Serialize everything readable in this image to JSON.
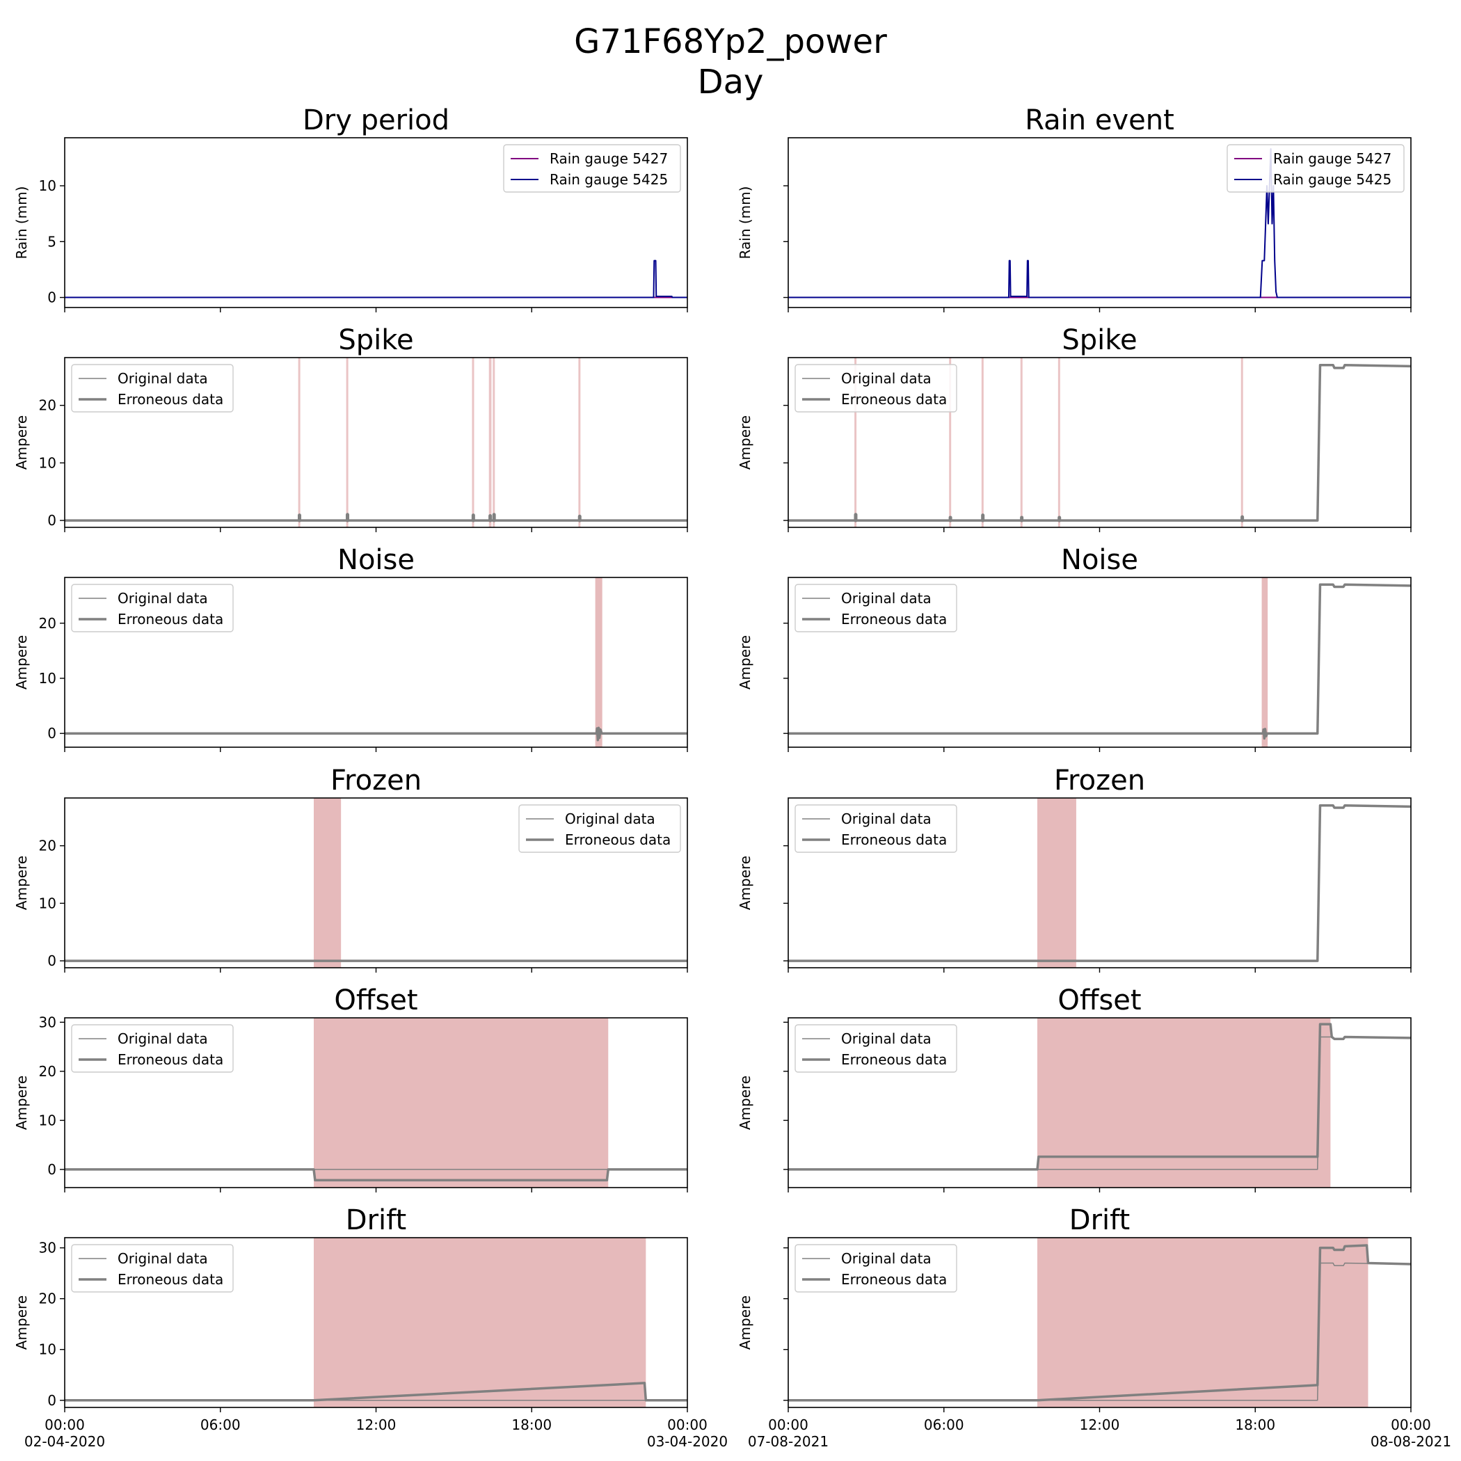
{
  "chart_data": {
    "type": "line",
    "title": "G71F68Yp2_power",
    "subtitle": "Day",
    "columns": [
      {
        "title": "Dry period",
        "x_ticks": [
          "00:00",
          "06:00",
          "12:00",
          "18:00",
          "00:00"
        ],
        "x_dates": [
          "02-04-2020",
          "03-04-2020"
        ]
      },
      {
        "title": "Rain event",
        "x_ticks": [
          "00:00",
          "06:00",
          "12:00",
          "18:00",
          "00:00"
        ],
        "x_dates": [
          "07-08-2021",
          "08-08-2021"
        ]
      }
    ],
    "xlim_hours": [
      0,
      24
    ],
    "colors": {
      "gauge_5427": "#800080",
      "gauge_5425": "#00008b",
      "data": "#808080",
      "highlight": "#e6babb"
    },
    "rows": [
      {
        "title": "Rain event",
        "title_dry": "Dry period",
        "ylabel": "Rain (mm)",
        "ylim": [
          -0.9,
          14.3
        ],
        "yticks": [
          "0",
          "5",
          "10"
        ],
        "ytick_values": [
          0,
          5,
          10
        ],
        "legend": [
          "Rain gauge 5427",
          "Rain gauge 5425"
        ],
        "legend_position": "top-right"
      },
      {
        "title": "Spike",
        "ylabel": "Ampere",
        "ylim": [
          -1.2,
          28.3
        ],
        "yticks": [
          "0",
          "10",
          "20"
        ],
        "ytick_values": [
          0,
          10,
          20
        ],
        "legend": [
          "Original data",
          "Erroneous data"
        ],
        "legend_position": "top-left"
      },
      {
        "title": "Noise",
        "ylabel": "Ampere",
        "ylim": [
          -2.5,
          28.3
        ],
        "yticks": [
          "0",
          "10",
          "20"
        ],
        "ytick_values": [
          0,
          10,
          20
        ],
        "legend": [
          "Original data",
          "Erroneous data"
        ],
        "legend_position": "top-left"
      },
      {
        "title": "Frozen",
        "ylabel": "Ampere",
        "ylim": [
          -1.2,
          28.3
        ],
        "yticks": [
          "0",
          "10",
          "20"
        ],
        "ytick_values": [
          0,
          10,
          20
        ],
        "legend": [
          "Original data",
          "Erroneous data"
        ],
        "legend_position_dry": "top-right",
        "legend_position": "top-left"
      },
      {
        "title": "Offset",
        "ylabel": "Ampere",
        "ylim": [
          -3.7,
          30.9
        ],
        "yticks": [
          "0",
          "10",
          "20",
          "30"
        ],
        "ytick_values": [
          0,
          10,
          20,
          30
        ],
        "legend": [
          "Original data",
          "Erroneous data"
        ],
        "legend_position": "top-left"
      },
      {
        "title": "Drift",
        "ylabel": "Ampere",
        "ylim": [
          -1.4,
          32.0
        ],
        "yticks": [
          "0",
          "10",
          "20",
          "30"
        ],
        "ytick_values": [
          0,
          10,
          20,
          30
        ],
        "legend": [
          "Original data",
          "Erroneous data"
        ],
        "legend_position": "top-left"
      }
    ],
    "panels": {
      "dry": {
        "rain": {
          "gauge_5427": [
            [
              0,
              0
            ],
            [
              22.7,
              0
            ],
            [
              24,
              0
            ]
          ],
          "gauge_5425": [
            [
              0,
              0
            ],
            [
              22.7,
              0
            ],
            [
              22.72,
              3.3
            ],
            [
              22.78,
              3.3
            ],
            [
              22.8,
              0.1
            ],
            [
              23.4,
              0.1
            ],
            [
              23.42,
              0
            ],
            [
              24,
              0
            ]
          ]
        },
        "spike": {
          "original": [
            [
              0,
              0
            ],
            [
              24,
              0
            ]
          ],
          "erroneous": [
            [
              0,
              0
            ],
            [
              24,
              0
            ]
          ],
          "spikes": [
            [
              9.05,
              0.9
            ],
            [
              10.9,
              1.0
            ],
            [
              15.75,
              0.9
            ],
            [
              16.4,
              0.8
            ],
            [
              16.55,
              1.0
            ],
            [
              19.85,
              0.7
            ]
          ],
          "regions": [
            [
              9.0,
              9.08
            ],
            [
              10.85,
              10.93
            ],
            [
              15.7,
              15.78
            ],
            [
              16.35,
              16.45
            ],
            [
              16.5,
              16.58
            ],
            [
              19.8,
              19.88
            ]
          ]
        },
        "noise": {
          "original": [
            [
              0,
              0
            ],
            [
              24,
              0
            ]
          ],
          "erroneous": [
            [
              0,
              0
            ],
            [
              20.5,
              0
            ],
            [
              20.52,
              0.9
            ],
            [
              20.55,
              -1.2
            ],
            [
              20.58,
              1.0
            ],
            [
              20.61,
              -0.8
            ],
            [
              20.65,
              0.7
            ],
            [
              20.7,
              0
            ],
            [
              24,
              0
            ]
          ],
          "regions": [
            [
              20.45,
              20.72
            ]
          ]
        },
        "frozen": {
          "original": [
            [
              0,
              0
            ],
            [
              24,
              0
            ]
          ],
          "erroneous": [
            [
              0,
              0
            ],
            [
              24,
              0
            ]
          ],
          "regions": [
            [
              9.6,
              10.65
            ]
          ]
        },
        "offset": {
          "original": [
            [
              0,
              0
            ],
            [
              24,
              0
            ]
          ],
          "erroneous": [
            [
              0,
              0
            ],
            [
              9.6,
              0
            ],
            [
              9.65,
              -2.2
            ],
            [
              20.9,
              -2.2
            ],
            [
              20.95,
              0
            ],
            [
              24,
              0
            ]
          ],
          "regions": [
            [
              9.6,
              20.95
            ]
          ]
        },
        "drift": {
          "original": [
            [
              0,
              0
            ],
            [
              24,
              0
            ]
          ],
          "erroneous": [
            [
              0,
              0
            ],
            [
              9.6,
              0
            ],
            [
              22.35,
              3.4
            ],
            [
              22.4,
              0
            ],
            [
              24,
              0
            ]
          ],
          "regions": [
            [
              9.6,
              22.4
            ]
          ]
        }
      },
      "rain": {
        "rain": {
          "gauge_5427": [
            [
              0,
              0
            ],
            [
              24,
              0
            ]
          ],
          "gauge_5425": [
            [
              0,
              0
            ],
            [
              8.5,
              0
            ],
            [
              8.52,
              3.3
            ],
            [
              8.55,
              3.3
            ],
            [
              8.57,
              0.1
            ],
            [
              9.2,
              0.1
            ],
            [
              9.22,
              3.3
            ],
            [
              9.25,
              3.3
            ],
            [
              9.27,
              0
            ],
            [
              18.2,
              0
            ],
            [
              18.27,
              3.3
            ],
            [
              18.35,
              3.3
            ],
            [
              18.4,
              6.6
            ],
            [
              18.45,
              10.0
            ],
            [
              18.5,
              6.6
            ],
            [
              18.55,
              10.0
            ],
            [
              18.6,
              13.3
            ],
            [
              18.65,
              6.6
            ],
            [
              18.7,
              10.0
            ],
            [
              18.75,
              3.3
            ],
            [
              18.8,
              0.5
            ],
            [
              18.85,
              0
            ],
            [
              24,
              0
            ]
          ]
        },
        "spike": {
          "original": [
            [
              0,
              0
            ],
            [
              20.4,
              0
            ],
            [
              20.5,
              27.0
            ],
            [
              21.0,
              27.0
            ],
            [
              21.05,
              26.5
            ],
            [
              21.4,
              26.5
            ],
            [
              21.45,
              27.0
            ],
            [
              24,
              26.8
            ]
          ],
          "erroneous": [
            [
              0,
              0
            ],
            [
              20.4,
              0
            ],
            [
              20.5,
              27.0
            ],
            [
              21.0,
              27.0
            ],
            [
              21.05,
              26.5
            ],
            [
              21.4,
              26.5
            ],
            [
              21.45,
              27.0
            ],
            [
              24,
              26.8
            ]
          ],
          "spikes": [
            [
              2.6,
              1.0
            ],
            [
              6.25,
              0.5
            ],
            [
              7.5,
              0.9
            ],
            [
              9.0,
              0.5
            ],
            [
              10.45,
              0.5
            ],
            [
              17.5,
              0.6
            ]
          ],
          "regions": [
            [
              2.55,
              2.63
            ],
            [
              6.2,
              6.28
            ],
            [
              7.45,
              7.53
            ],
            [
              8.95,
              9.03
            ],
            [
              10.4,
              10.48
            ],
            [
              17.45,
              17.53
            ]
          ]
        },
        "noise": {
          "original": [
            [
              0,
              0
            ],
            [
              20.4,
              0
            ],
            [
              20.5,
              27.0
            ],
            [
              21.0,
              27.0
            ],
            [
              21.05,
              26.6
            ],
            [
              21.4,
              26.6
            ],
            [
              21.45,
              27.0
            ],
            [
              24,
              26.8
            ]
          ],
          "erroneous": [
            [
              0,
              0
            ],
            [
              18.3,
              0
            ],
            [
              18.32,
              0.7
            ],
            [
              18.35,
              -0.9
            ],
            [
              18.38,
              0.8
            ],
            [
              18.42,
              -0.5
            ],
            [
              18.46,
              0
            ],
            [
              20.4,
              0
            ],
            [
              20.5,
              27.0
            ],
            [
              21.0,
              27.0
            ],
            [
              21.05,
              26.6
            ],
            [
              21.4,
              26.6
            ],
            [
              21.45,
              27.0
            ],
            [
              24,
              26.8
            ]
          ],
          "regions": [
            [
              18.25,
              18.48
            ]
          ]
        },
        "frozen": {
          "original": [
            [
              0,
              0
            ],
            [
              20.4,
              0
            ],
            [
              20.5,
              27.0
            ],
            [
              21.0,
              27.0
            ],
            [
              21.05,
              26.6
            ],
            [
              21.4,
              26.6
            ],
            [
              21.45,
              27.0
            ],
            [
              24,
              26.8
            ]
          ],
          "erroneous": [
            [
              0,
              0
            ],
            [
              20.4,
              0
            ],
            [
              20.5,
              27.0
            ],
            [
              21.0,
              27.0
            ],
            [
              21.05,
              26.6
            ],
            [
              21.4,
              26.6
            ],
            [
              21.45,
              27.0
            ],
            [
              24,
              26.8
            ]
          ],
          "regions": [
            [
              9.6,
              11.1
            ]
          ]
        },
        "offset": {
          "original": [
            [
              0,
              0
            ],
            [
              20.4,
              0
            ],
            [
              20.5,
              27.0
            ],
            [
              21.0,
              27.0
            ],
            [
              21.05,
              26.6
            ],
            [
              21.4,
              26.6
            ],
            [
              21.45,
              27.0
            ],
            [
              24,
              26.8
            ]
          ],
          "erroneous": [
            [
              0,
              0
            ],
            [
              9.6,
              0
            ],
            [
              9.65,
              2.6
            ],
            [
              20.4,
              2.6
            ],
            [
              20.5,
              29.6
            ],
            [
              20.9,
              29.6
            ],
            [
              20.95,
              27.0
            ],
            [
              21.05,
              26.6
            ],
            [
              21.4,
              26.6
            ],
            [
              21.45,
              27.0
            ],
            [
              24,
              26.8
            ]
          ],
          "regions": [
            [
              9.6,
              20.9
            ]
          ]
        },
        "drift": {
          "original": [
            [
              0,
              0
            ],
            [
              20.4,
              0
            ],
            [
              20.5,
              27.0
            ],
            [
              21.0,
              27.0
            ],
            [
              21.05,
              26.5
            ],
            [
              21.4,
              26.5
            ],
            [
              21.45,
              27.0
            ],
            [
              24,
              26.8
            ]
          ],
          "erroneous": [
            [
              0,
              0
            ],
            [
              9.6,
              0
            ],
            [
              20.4,
              3.0
            ],
            [
              20.5,
              30.0
            ],
            [
              21.0,
              30.0
            ],
            [
              21.05,
              29.6
            ],
            [
              21.4,
              29.6
            ],
            [
              21.45,
              30.3
            ],
            [
              22.3,
              30.5
            ],
            [
              22.35,
              27.0
            ],
            [
              24,
              26.8
            ]
          ],
          "regions": [
            [
              9.6,
              22.35
            ]
          ]
        }
      }
    }
  }
}
